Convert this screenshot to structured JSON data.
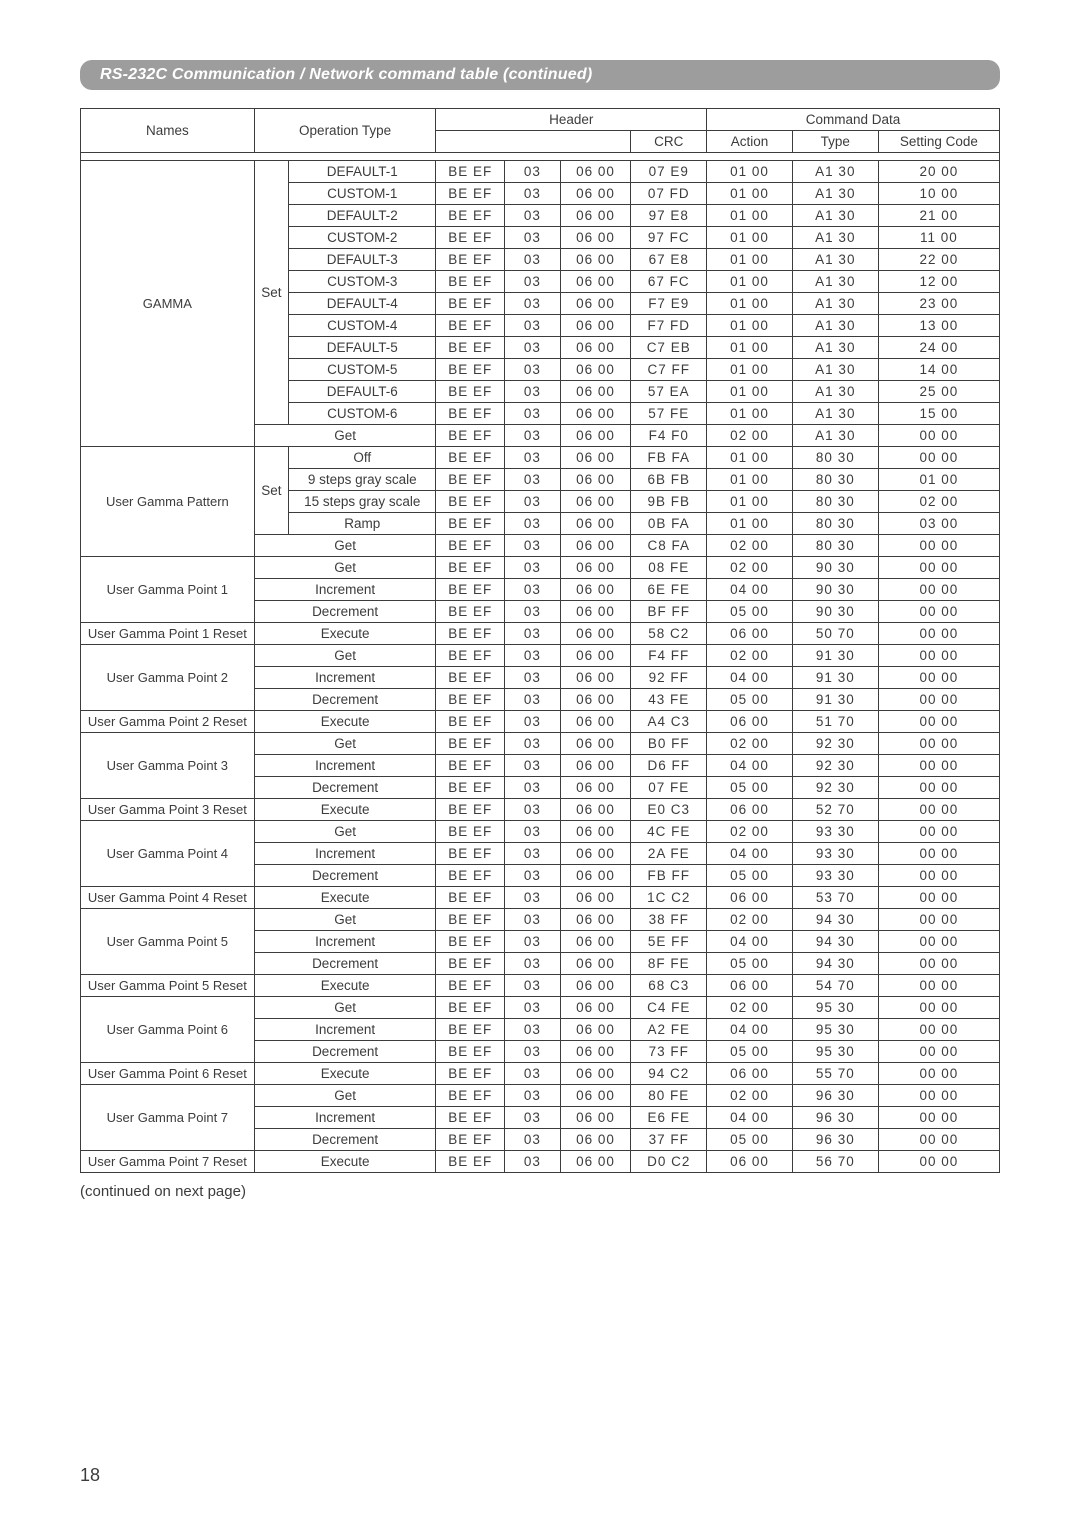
{
  "title": "RS-232C Communication / Network command table (continued)",
  "continued_note": "(continued on next page)",
  "page_number": "18",
  "columns": {
    "names": "Names",
    "operation_type": "Operation Type",
    "header": "Header",
    "crc": "CRC",
    "command_data": "Command Data",
    "action": "Action",
    "type": "Type",
    "setting_code": "Setting Code"
  },
  "colors": {
    "page_bg": "#ffffff",
    "title_bar_bg": "#9d9d9d",
    "title_bar_text": "#ffffff",
    "border": "#3c3c3c",
    "text": "#3c3c3c"
  },
  "groups": [
    {
      "name": "GAMMA",
      "rows": [
        {
          "opA": "Set",
          "opB": "DEFAULT-1",
          "h1": "BE  EF",
          "h2": "03",
          "h3": "06  00",
          "crc": "07  E9",
          "act": "01  00",
          "type": "A1  30",
          "set": "20  00",
          "opA_span": 12
        },
        {
          "opB": "CUSTOM-1",
          "h1": "BE  EF",
          "h2": "03",
          "h3": "06  00",
          "crc": "07  FD",
          "act": "01  00",
          "type": "A1  30",
          "set": "10  00"
        },
        {
          "opB": "DEFAULT-2",
          "h1": "BE  EF",
          "h2": "03",
          "h3": "06  00",
          "crc": "97  E8",
          "act": "01  00",
          "type": "A1  30",
          "set": "21  00"
        },
        {
          "opB": "CUSTOM-2",
          "h1": "BE  EF",
          "h2": "03",
          "h3": "06  00",
          "crc": "97  FC",
          "act": "01  00",
          "type": "A1  30",
          "set": "11  00"
        },
        {
          "opB": "DEFAULT-3",
          "h1": "BE  EF",
          "h2": "03",
          "h3": "06  00",
          "crc": "67  E8",
          "act": "01  00",
          "type": "A1  30",
          "set": "22  00"
        },
        {
          "opB": "CUSTOM-3",
          "h1": "BE  EF",
          "h2": "03",
          "h3": "06  00",
          "crc": "67  FC",
          "act": "01  00",
          "type": "A1  30",
          "set": "12  00"
        },
        {
          "opB": "DEFAULT-4",
          "h1": "BE  EF",
          "h2": "03",
          "h3": "06  00",
          "crc": "F7  E9",
          "act": "01  00",
          "type": "A1  30",
          "set": "23  00"
        },
        {
          "opB": "CUSTOM-4",
          "h1": "BE  EF",
          "h2": "03",
          "h3": "06  00",
          "crc": "F7  FD",
          "act": "01  00",
          "type": "A1  30",
          "set": "13  00"
        },
        {
          "opB": "DEFAULT-5",
          "h1": "BE  EF",
          "h2": "03",
          "h3": "06  00",
          "crc": "C7  EB",
          "act": "01  00",
          "type": "A1  30",
          "set": "24  00"
        },
        {
          "opB": "CUSTOM-5",
          "h1": "BE  EF",
          "h2": "03",
          "h3": "06  00",
          "crc": "C7  FF",
          "act": "01  00",
          "type": "A1  30",
          "set": "14  00"
        },
        {
          "opB": "DEFAULT-6",
          "h1": "BE  EF",
          "h2": "03",
          "h3": "06  00",
          "crc": "57  EA",
          "act": "01  00",
          "type": "A1  30",
          "set": "25  00"
        },
        {
          "opB": "CUSTOM-6",
          "h1": "BE  EF",
          "h2": "03",
          "h3": "06  00",
          "crc": "57  FE",
          "act": "01  00",
          "type": "A1  30",
          "set": "15  00"
        },
        {
          "opMerged": "Get",
          "h1": "BE  EF",
          "h2": "03",
          "h3": "06  00",
          "crc": "F4  F0",
          "act": "02  00",
          "type": "A1  30",
          "set": "00  00"
        }
      ]
    },
    {
      "name": "User Gamma Pattern",
      "rows": [
        {
          "opA": "Set",
          "opB": "Off",
          "h1": "BE  EF",
          "h2": "03",
          "h3": "06  00",
          "crc": "FB  FA",
          "act": "01  00",
          "type": "80  30",
          "set": "00  00",
          "opA_span": 4
        },
        {
          "opB": "9 steps gray scale",
          "h1": "BE  EF",
          "h2": "03",
          "h3": "06  00",
          "crc": "6B  FB",
          "act": "01  00",
          "type": "80  30",
          "set": "01  00"
        },
        {
          "opB": "15 steps gray scale",
          "h1": "BE  EF",
          "h2": "03",
          "h3": "06  00",
          "crc": "9B  FB",
          "act": "01  00",
          "type": "80  30",
          "set": "02  00"
        },
        {
          "opB": "Ramp",
          "h1": "BE  EF",
          "h2": "03",
          "h3": "06  00",
          "crc": "0B  FA",
          "act": "01  00",
          "type": "80  30",
          "set": "03  00"
        },
        {
          "opMerged": "Get",
          "h1": "BE  EF",
          "h2": "03",
          "h3": "06  00",
          "crc": "C8  FA",
          "act": "02  00",
          "type": "80  30",
          "set": "00  00"
        }
      ]
    },
    {
      "name": "User Gamma Point 1",
      "rows": [
        {
          "opMerged": "Get",
          "h1": "BE  EF",
          "h2": "03",
          "h3": "06  00",
          "crc": "08  FE",
          "act": "02  00",
          "type": "90  30",
          "set": "00  00"
        },
        {
          "opMerged": "Increment",
          "h1": "BE  EF",
          "h2": "03",
          "h3": "06  00",
          "crc": "6E  FE",
          "act": "04  00",
          "type": "90  30",
          "set": "00  00"
        },
        {
          "opMerged": "Decrement",
          "h1": "BE  EF",
          "h2": "03",
          "h3": "06  00",
          "crc": "BF  FF",
          "act": "05  00",
          "type": "90  30",
          "set": "00  00"
        }
      ]
    },
    {
      "name": "User Gamma Point 1 Reset",
      "rows": [
        {
          "opMerged": "Execute",
          "h1": "BE  EF",
          "h2": "03",
          "h3": "06  00",
          "crc": "58  C2",
          "act": "06  00",
          "type": "50  70",
          "set": "00  00"
        }
      ]
    },
    {
      "name": "User Gamma Point 2",
      "rows": [
        {
          "opMerged": "Get",
          "h1": "BE  EF",
          "h2": "03",
          "h3": "06  00",
          "crc": "F4  FF",
          "act": "02  00",
          "type": "91  30",
          "set": "00  00"
        },
        {
          "opMerged": "Increment",
          "h1": "BE  EF",
          "h2": "03",
          "h3": "06  00",
          "crc": "92  FF",
          "act": "04  00",
          "type": "91  30",
          "set": "00  00"
        },
        {
          "opMerged": "Decrement",
          "h1": "BE  EF",
          "h2": "03",
          "h3": "06  00",
          "crc": "43  FE",
          "act": "05  00",
          "type": "91  30",
          "set": "00  00"
        }
      ]
    },
    {
      "name": "User Gamma Point 2 Reset",
      "rows": [
        {
          "opMerged": "Execute",
          "h1": "BE  EF",
          "h2": "03",
          "h3": "06  00",
          "crc": "A4  C3",
          "act": "06  00",
          "type": "51  70",
          "set": "00  00"
        }
      ]
    },
    {
      "name": "User Gamma Point 3",
      "rows": [
        {
          "opMerged": "Get",
          "h1": "BE  EF",
          "h2": "03",
          "h3": "06  00",
          "crc": "B0  FF",
          "act": "02  00",
          "type": "92  30",
          "set": "00  00"
        },
        {
          "opMerged": "Increment",
          "h1": "BE  EF",
          "h2": "03",
          "h3": "06  00",
          "crc": "D6  FF",
          "act": "04  00",
          "type": "92  30",
          "set": "00  00"
        },
        {
          "opMerged": "Decrement",
          "h1": "BE  EF",
          "h2": "03",
          "h3": "06  00",
          "crc": "07  FE",
          "act": "05  00",
          "type": "92  30",
          "set": "00  00"
        }
      ]
    },
    {
      "name": "User Gamma Point 3 Reset",
      "rows": [
        {
          "opMerged": "Execute",
          "h1": "BE  EF",
          "h2": "03",
          "h3": "06  00",
          "crc": "E0  C3",
          "act": "06  00",
          "type": "52  70",
          "set": "00  00"
        }
      ]
    },
    {
      "name": "User Gamma Point 4",
      "rows": [
        {
          "opMerged": "Get",
          "h1": "BE  EF",
          "h2": "03",
          "h3": "06  00",
          "crc": "4C  FE",
          "act": "02  00",
          "type": "93  30",
          "set": "00  00"
        },
        {
          "opMerged": "Increment",
          "h1": "BE  EF",
          "h2": "03",
          "h3": "06  00",
          "crc": "2A  FE",
          "act": "04  00",
          "type": "93  30",
          "set": "00  00"
        },
        {
          "opMerged": "Decrement",
          "h1": "BE  EF",
          "h2": "03",
          "h3": "06  00",
          "crc": "FB  FF",
          "act": "05  00",
          "type": "93  30",
          "set": "00  00"
        }
      ]
    },
    {
      "name": "User Gamma Point 4 Reset",
      "rows": [
        {
          "opMerged": "Execute",
          "h1": "BE  EF",
          "h2": "03",
          "h3": "06  00",
          "crc": "1C  C2",
          "act": "06  00",
          "type": "53  70",
          "set": "00  00"
        }
      ]
    },
    {
      "name": "User Gamma Point 5",
      "rows": [
        {
          "opMerged": "Get",
          "h1": "BE  EF",
          "h2": "03",
          "h3": "06  00",
          "crc": "38  FF",
          "act": "02  00",
          "type": "94  30",
          "set": "00  00"
        },
        {
          "opMerged": "Increment",
          "h1": "BE  EF",
          "h2": "03",
          "h3": "06  00",
          "crc": "5E  FF",
          "act": "04  00",
          "type": "94  30",
          "set": "00  00"
        },
        {
          "opMerged": "Decrement",
          "h1": "BE  EF",
          "h2": "03",
          "h3": "06  00",
          "crc": "8F  FE",
          "act": "05  00",
          "type": "94  30",
          "set": "00  00"
        }
      ]
    },
    {
      "name": "User Gamma Point 5 Reset",
      "rows": [
        {
          "opMerged": "Execute",
          "h1": "BE  EF",
          "h2": "03",
          "h3": "06  00",
          "crc": "68  C3",
          "act": "06  00",
          "type": "54  70",
          "set": "00  00"
        }
      ]
    },
    {
      "name": "User Gamma Point 6",
      "rows": [
        {
          "opMerged": "Get",
          "h1": "BE  EF",
          "h2": "03",
          "h3": "06  00",
          "crc": "C4  FE",
          "act": "02  00",
          "type": "95  30",
          "set": "00  00"
        },
        {
          "opMerged": "Increment",
          "h1": "BE  EF",
          "h2": "03",
          "h3": "06  00",
          "crc": "A2  FE",
          "act": "04  00",
          "type": "95  30",
          "set": "00  00"
        },
        {
          "opMerged": "Decrement",
          "h1": "BE  EF",
          "h2": "03",
          "h3": "06  00",
          "crc": "73  FF",
          "act": "05  00",
          "type": "95  30",
          "set": "00  00"
        }
      ]
    },
    {
      "name": "User Gamma Point 6 Reset",
      "rows": [
        {
          "opMerged": "Execute",
          "h1": "BE  EF",
          "h2": "03",
          "h3": "06  00",
          "crc": "94  C2",
          "act": "06  00",
          "type": "55  70",
          "set": "00  00"
        }
      ]
    },
    {
      "name": "User Gamma Point 7",
      "rows": [
        {
          "opMerged": "Get",
          "h1": "BE  EF",
          "h2": "03",
          "h3": "06  00",
          "crc": "80  FE",
          "act": "02  00",
          "type": "96  30",
          "set": "00  00"
        },
        {
          "opMerged": "Increment",
          "h1": "BE  EF",
          "h2": "03",
          "h3": "06  00",
          "crc": "E6  FE",
          "act": "04  00",
          "type": "96  30",
          "set": "00  00"
        },
        {
          "opMerged": "Decrement",
          "h1": "BE  EF",
          "h2": "03",
          "h3": "06  00",
          "crc": "37  FF",
          "act": "05  00",
          "type": "96  30",
          "set": "00  00"
        }
      ]
    },
    {
      "name": "User Gamma Point 7 Reset",
      "rows": [
        {
          "opMerged": "Execute",
          "h1": "BE  EF",
          "h2": "03",
          "h3": "06  00",
          "crc": "D0  C2",
          "act": "06  00",
          "type": "56  70",
          "set": "00  00"
        }
      ]
    }
  ]
}
